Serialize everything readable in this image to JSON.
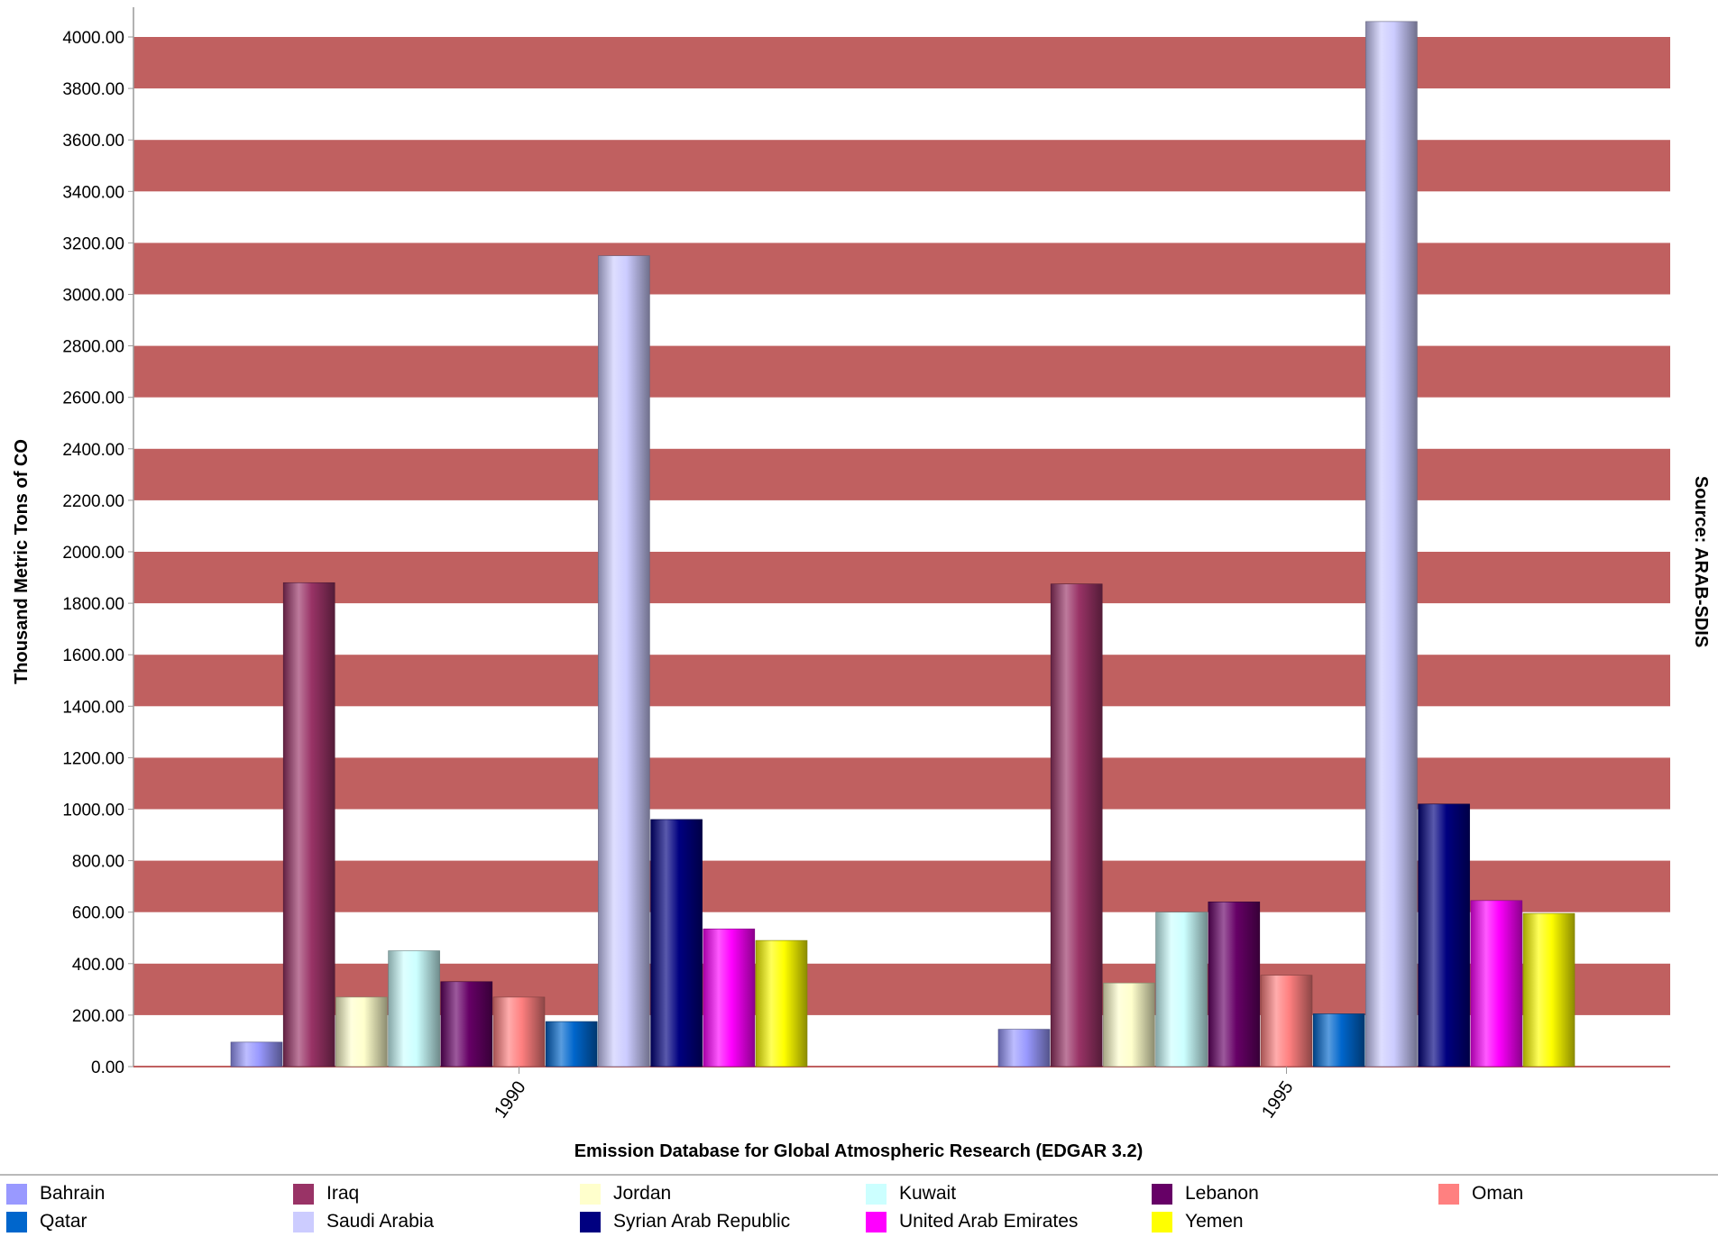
{
  "chart_data": {
    "type": "bar",
    "title": "",
    "xlabel": "Emission Database for Global Atmospheric Research (EDGAR 3.2)",
    "ylabel": "Thousand Metric Tons of CO",
    "source_label": "Source: ARAB-SDIS",
    "categories": [
      "1990",
      "1995"
    ],
    "ylim": [
      0,
      4000
    ],
    "yticks": [
      "0.00",
      "200.00",
      "400.00",
      "600.00",
      "800.00",
      "1000.00",
      "1200.00",
      "1400.00",
      "1600.00",
      "1800.00",
      "2000.00",
      "2200.00",
      "2400.00",
      "2600.00",
      "2800.00",
      "3000.00",
      "3200.00",
      "3400.00",
      "3600.00",
      "3800.00",
      "4000.00"
    ],
    "background_band_color": "#c06060",
    "grid": true,
    "legend_position": "bottom",
    "series": [
      {
        "name": "Bahrain",
        "color": "#9999ff",
        "values": [
          95,
          145
        ]
      },
      {
        "name": "Iraq",
        "color": "#993366",
        "values": [
          1880,
          1875
        ]
      },
      {
        "name": "Jordan",
        "color": "#ffffcc",
        "values": [
          270,
          325
        ]
      },
      {
        "name": "Kuwait",
        "color": "#ccffff",
        "values": [
          450,
          600
        ]
      },
      {
        "name": "Lebanon",
        "color": "#660066",
        "values": [
          330,
          640
        ]
      },
      {
        "name": "Oman",
        "color": "#ff8080",
        "values": [
          270,
          355
        ]
      },
      {
        "name": "Qatar",
        "color": "#0066cc",
        "values": [
          175,
          205
        ]
      },
      {
        "name": "Saudi Arabia",
        "color": "#ccccff",
        "values": [
          3150,
          4060
        ]
      },
      {
        "name": "Syrian Arab Republic",
        "color": "#000080",
        "values": [
          960,
          1020
        ]
      },
      {
        "name": "United Arab Emirates",
        "color": "#ff00ff",
        "values": [
          535,
          645
        ]
      },
      {
        "name": "Yemen",
        "color": "#ffff00",
        "values": [
          490,
          595
        ]
      }
    ]
  }
}
